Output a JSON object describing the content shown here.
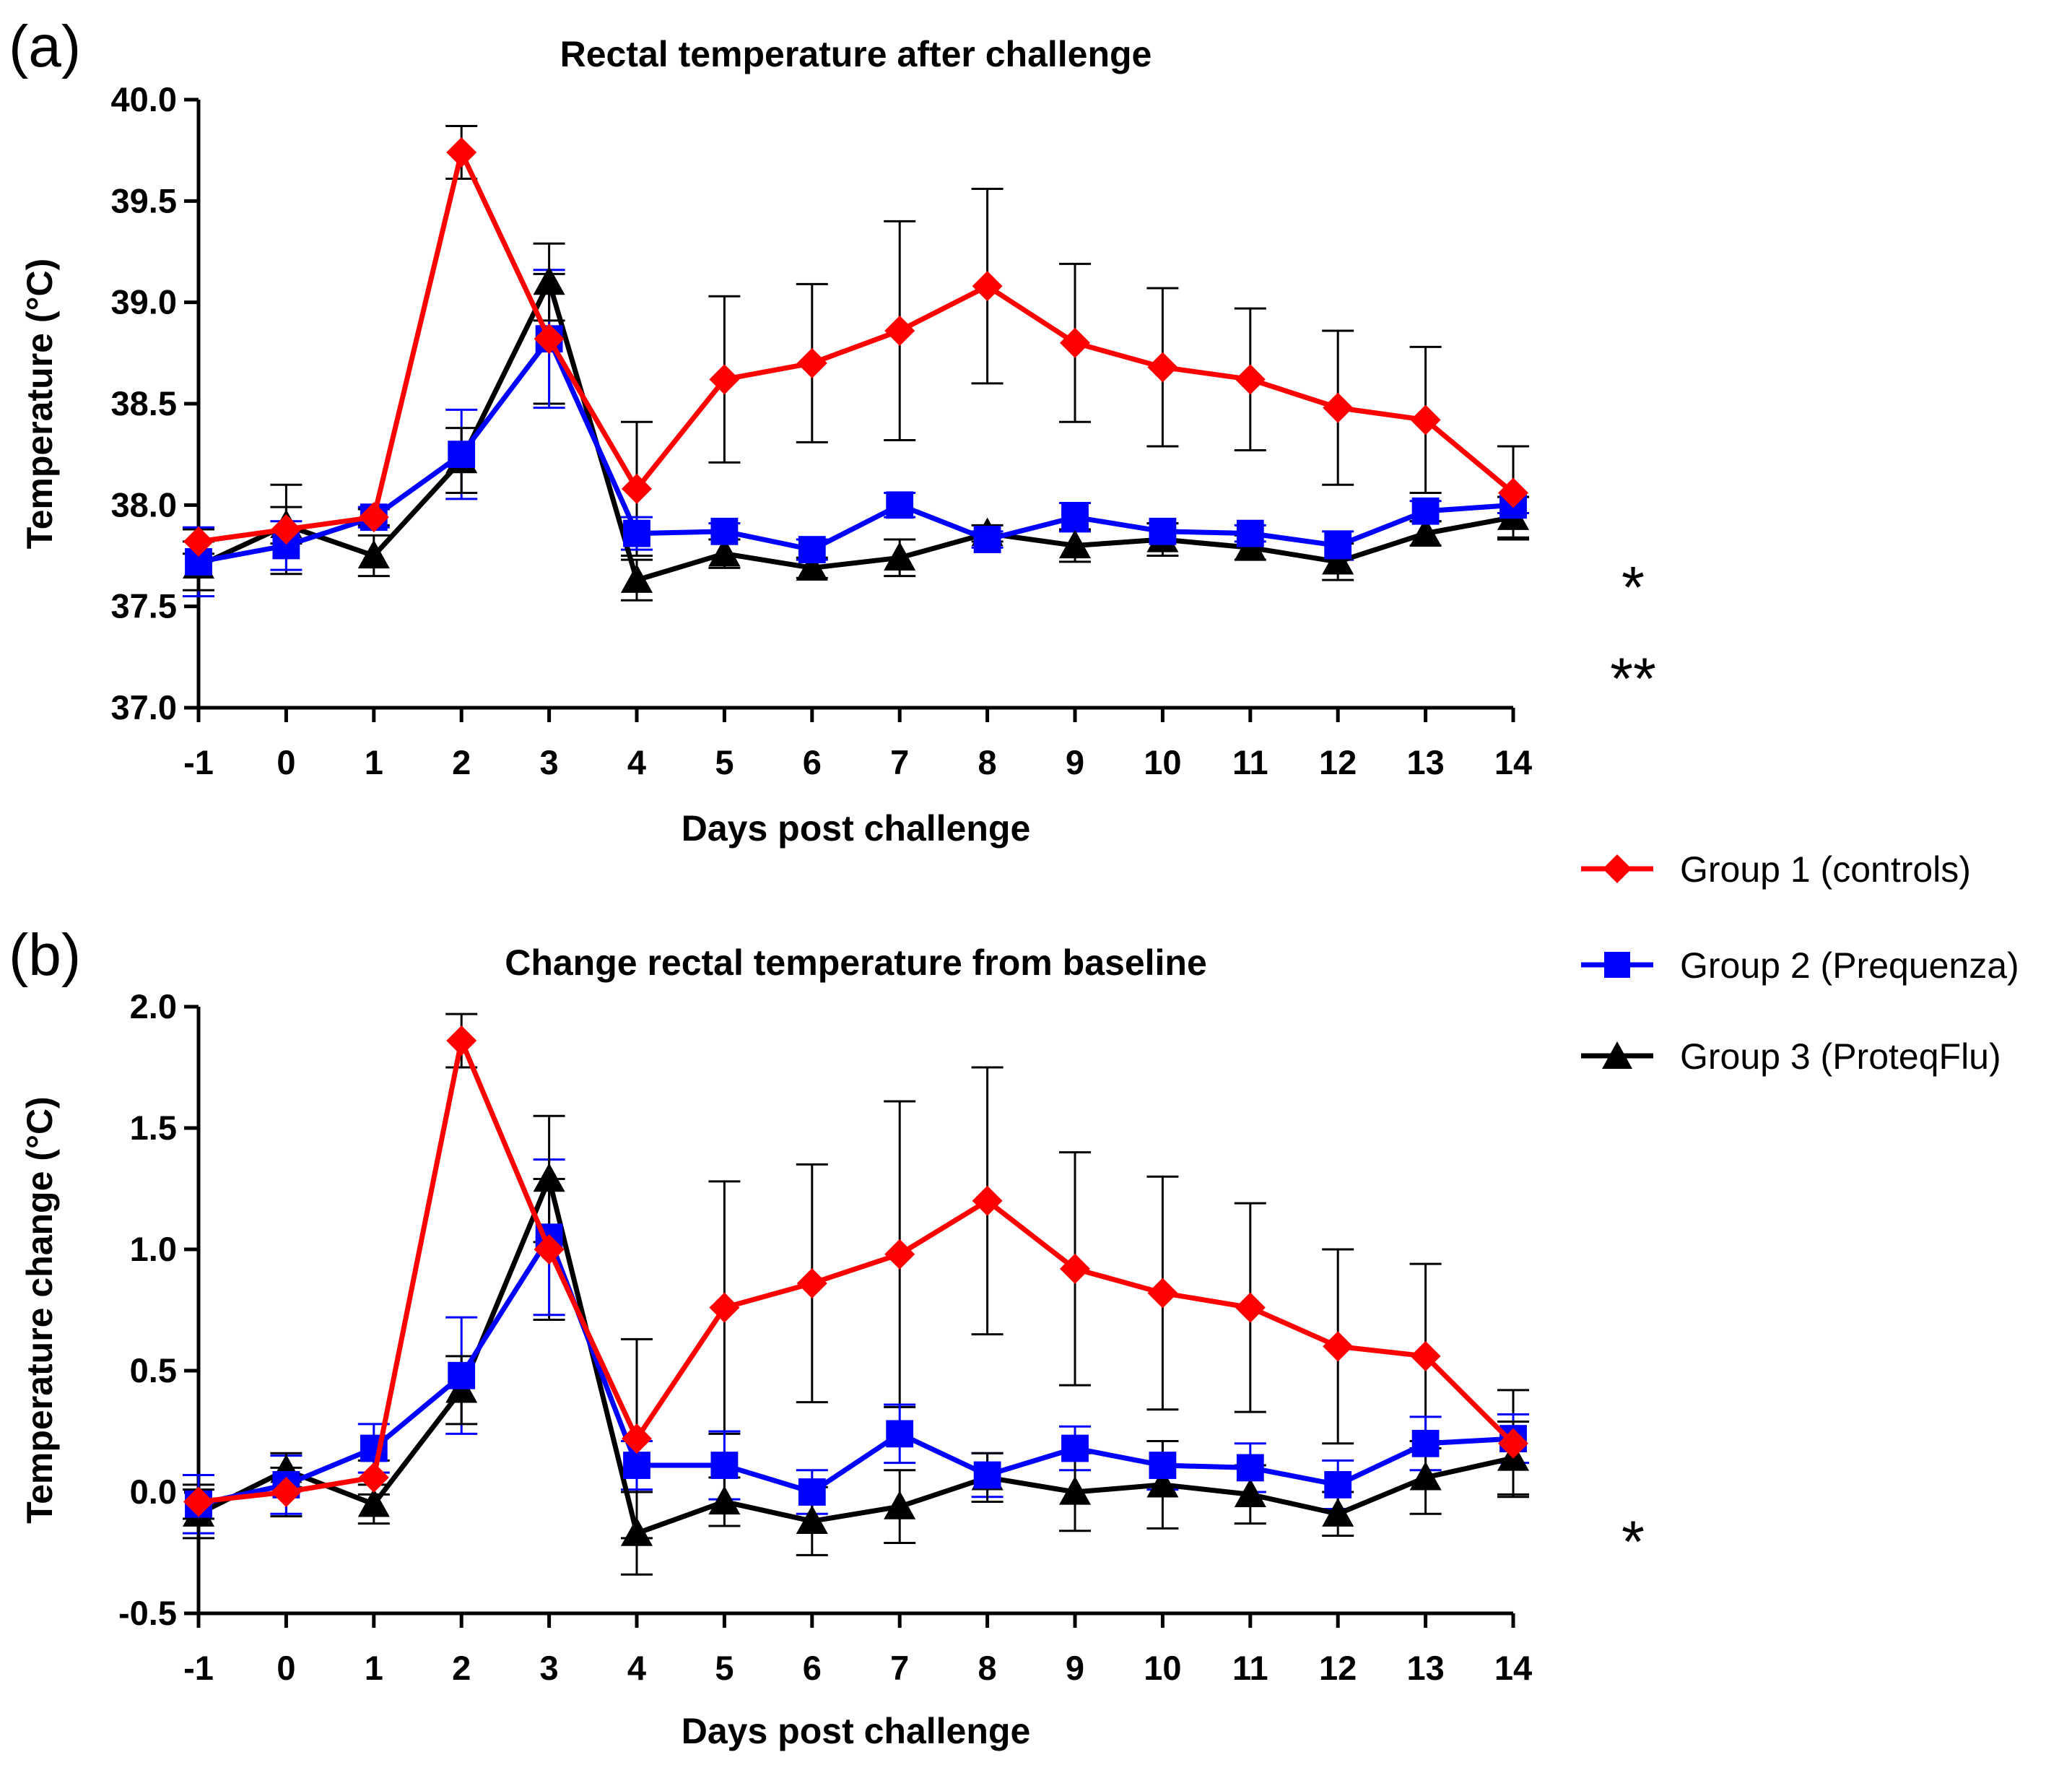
{
  "figure": {
    "panel_letters": [
      "(a)",
      "(b)"
    ],
    "legend": [
      {
        "label": "Group 1 (controls)",
        "color": "#ff0000",
        "marker": "diamond"
      },
      {
        "label": "Group 2 (Prequenza)",
        "color": "#0000ff",
        "marker": "square"
      },
      {
        "label": "Group 3 (ProteqFlu)",
        "color": "#000000",
        "marker": "triangle"
      }
    ]
  },
  "chart_data": [
    {
      "type": "line",
      "title": "Rectal temperature after challenge",
      "xlabel": "Days post challenge",
      "ylabel": "Temperature (°C)",
      "x": [
        -1,
        0,
        1,
        2,
        3,
        4,
        5,
        6,
        7,
        8,
        9,
        10,
        11,
        12,
        13,
        14
      ],
      "xlim": [
        -1,
        14
      ],
      "ylim": [
        37.0,
        40.0
      ],
      "yticks": [
        "37.0",
        "37.5",
        "38.0",
        "38.5",
        "39.0",
        "39.5",
        "40.0"
      ],
      "ytick_values": [
        37.0,
        37.5,
        38.0,
        38.5,
        39.0,
        39.5,
        40.0
      ],
      "grid": false,
      "legend_position": "right",
      "significance_marks": [
        {
          "text": "*",
          "y": 37.6,
          "color": "#000000"
        },
        {
          "text": "**",
          "y": 37.15,
          "color": "#000000"
        }
      ],
      "series": [
        {
          "name": "Group 1 (controls)",
          "color": "#ff0000",
          "error_color": "#000000",
          "marker": "diamond",
          "values": [
            37.82,
            37.88,
            37.94,
            39.74,
            38.82,
            38.08,
            38.62,
            38.7,
            38.86,
            39.08,
            38.8,
            38.68,
            38.62,
            38.48,
            38.42,
            38.06
          ],
          "errors": [
            0.06,
            0.22,
            0.04,
            0.13,
            0.32,
            0.33,
            0.41,
            0.39,
            0.54,
            0.48,
            0.39,
            0.39,
            0.35,
            0.38,
            0.36,
            0.23
          ]
        },
        {
          "name": "Group 2 (Prequenza)",
          "color": "#0000ff",
          "error_color": "#0000ff",
          "marker": "square",
          "values": [
            37.72,
            37.8,
            37.94,
            38.25,
            38.82,
            37.86,
            37.87,
            37.78,
            38.0,
            37.83,
            37.94,
            37.87,
            37.86,
            37.8,
            37.97,
            38.0
          ],
          "errors": [
            0.17,
            0.12,
            0.05,
            0.22,
            0.34,
            0.08,
            0.04,
            0.05,
            0.06,
            0.04,
            0.07,
            0.04,
            0.04,
            0.07,
            0.05,
            0.04
          ]
        },
        {
          "name": "Group 3 (ProteqFlu)",
          "color": "#000000",
          "error_color": "#000000",
          "marker": "triangle",
          "values": [
            37.7,
            37.9,
            37.75,
            38.22,
            39.1,
            37.63,
            37.76,
            37.69,
            37.74,
            37.86,
            37.8,
            37.83,
            37.79,
            37.72,
            37.86,
            37.94
          ],
          "errors": [
            0.12,
            0.09,
            0.1,
            0.16,
            0.19,
            0.1,
            0.07,
            0.05,
            0.09,
            0.04,
            0.08,
            0.08,
            0.06,
            0.09,
            0.06,
            0.1
          ]
        }
      ]
    },
    {
      "type": "line",
      "title": "Change rectal temperature from baseline",
      "xlabel": "Days post challenge",
      "ylabel": "Temperature change (°C)",
      "x": [
        -1,
        0,
        1,
        2,
        3,
        4,
        5,
        6,
        7,
        8,
        9,
        10,
        11,
        12,
        13,
        14
      ],
      "xlim": [
        -1,
        14
      ],
      "ylim": [
        -0.5,
        2.0
      ],
      "yticks": [
        "-0.5",
        "0.0",
        "0.5",
        "1.0",
        "1.5",
        "2.0"
      ],
      "ytick_values": [
        -0.5,
        0.0,
        0.5,
        1.0,
        1.5,
        2.0
      ],
      "grid": false,
      "legend_position": "right",
      "significance_marks": [
        {
          "text": "*",
          "y": -0.2,
          "color": "#000000"
        }
      ],
      "series": [
        {
          "name": "Group 1 (controls)",
          "color": "#ff0000",
          "error_color": "#000000",
          "marker": "diamond",
          "values": [
            -0.04,
            0.0,
            0.06,
            1.86,
            1.0,
            0.22,
            0.76,
            0.86,
            0.98,
            1.2,
            0.92,
            0.82,
            0.76,
            0.6,
            0.56,
            0.2
          ],
          "errors": [
            0.07,
            0.1,
            0.07,
            0.11,
            0.29,
            0.41,
            0.52,
            0.49,
            0.63,
            0.55,
            0.48,
            0.48,
            0.43,
            0.4,
            0.38,
            0.22
          ]
        },
        {
          "name": "Group 2 (Prequenza)",
          "color": "#0000ff",
          "error_color": "#0000ff",
          "marker": "square",
          "values": [
            -0.05,
            0.03,
            0.18,
            0.48,
            1.05,
            0.11,
            0.11,
            0.0,
            0.24,
            0.07,
            0.18,
            0.11,
            0.1,
            0.03,
            0.2,
            0.22
          ],
          "errors": [
            0.12,
            0.12,
            0.1,
            0.24,
            0.32,
            0.1,
            0.14,
            0.09,
            0.12,
            0.09,
            0.09,
            0.1,
            0.1,
            0.1,
            0.11,
            0.1
          ]
        },
        {
          "name": "Group 3 (ProteqFlu)",
          "color": "#000000",
          "error_color": "#000000",
          "marker": "triangle",
          "values": [
            -0.09,
            0.09,
            -0.05,
            0.42,
            1.29,
            -0.17,
            -0.04,
            -0.12,
            -0.06,
            0.06,
            0.0,
            0.03,
            -0.01,
            -0.09,
            0.06,
            0.14
          ],
          "errors": [
            0.1,
            0.07,
            0.08,
            0.14,
            0.26,
            0.17,
            0.1,
            0.14,
            0.15,
            0.1,
            0.16,
            0.18,
            0.12,
            0.09,
            0.15,
            0.15
          ]
        }
      ]
    }
  ]
}
